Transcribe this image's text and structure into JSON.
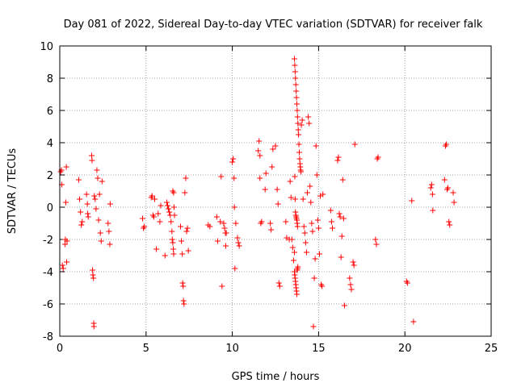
{
  "chart_data": {
    "type": "scatter",
    "title": "Day 081 of 2022, Sidereal Day-to-day VTEC variation (SDTVAR) for receiver falk",
    "xlabel": "GPS time / hours",
    "ylabel": "SDTVAR / TECUs",
    "xlim": [
      0,
      25
    ],
    "ylim": [
      -8,
      10
    ],
    "xticks": [
      0,
      5,
      10,
      15,
      20,
      25
    ],
    "yticks": [
      -8,
      -6,
      -4,
      -2,
      0,
      2,
      4,
      6,
      8,
      10
    ],
    "grid": true,
    "marker": "+",
    "color": "#ff0000",
    "series": [
      {
        "name": "SDTVAR",
        "points": [
          [
            0.05,
            2.2
          ],
          [
            0.1,
            2.3
          ],
          [
            0.12,
            1.4
          ],
          [
            0.15,
            -3.6
          ],
          [
            0.2,
            -3.8
          ],
          [
            0.3,
            -2.3
          ],
          [
            0.32,
            -2.0
          ],
          [
            0.35,
            0.3
          ],
          [
            0.38,
            2.5
          ],
          [
            0.4,
            -3.4
          ],
          [
            0.42,
            -2.1
          ],
          [
            1.1,
            1.7
          ],
          [
            1.15,
            0.5
          ],
          [
            1.2,
            -0.3
          ],
          [
            1.25,
            -1.1
          ],
          [
            1.3,
            -0.9
          ],
          [
            1.55,
            0.8
          ],
          [
            1.6,
            0.2
          ],
          [
            1.62,
            -0.4
          ],
          [
            1.65,
            -0.6
          ],
          [
            1.85,
            3.2
          ],
          [
            1.87,
            2.9
          ],
          [
            1.9,
            -3.9
          ],
          [
            1.92,
            -4.2
          ],
          [
            1.95,
            -4.4
          ],
          [
            1.97,
            -7.2
          ],
          [
            1.98,
            -7.4
          ],
          [
            2.0,
            0.7
          ],
          [
            2.05,
            0.5
          ],
          [
            2.1,
            -0.1
          ],
          [
            2.15,
            2.3
          ],
          [
            2.2,
            1.8
          ],
          [
            2.25,
            -0.8
          ],
          [
            2.3,
            0.8
          ],
          [
            2.35,
            -1.6
          ],
          [
            2.4,
            -2.1
          ],
          [
            2.45,
            1.6
          ],
          [
            2.8,
            -1.0
          ],
          [
            2.85,
            -1.5
          ],
          [
            2.9,
            -2.3
          ],
          [
            2.92,
            0.2
          ],
          [
            4.8,
            -0.7
          ],
          [
            4.85,
            -1.3
          ],
          [
            4.9,
            -1.2
          ],
          [
            5.3,
            0.6
          ],
          [
            5.35,
            0.7
          ],
          [
            5.4,
            -0.5
          ],
          [
            5.45,
            -0.6
          ],
          [
            5.5,
            0.5
          ],
          [
            5.6,
            -2.6
          ],
          [
            5.7,
            -0.4
          ],
          [
            5.8,
            -0.9
          ],
          [
            5.85,
            0.1
          ],
          [
            6.1,
            -3.0
          ],
          [
            6.2,
            0.3
          ],
          [
            6.25,
            0.1
          ],
          [
            6.3,
            -0.1
          ],
          [
            6.35,
            -0.3
          ],
          [
            6.4,
            -0.5
          ],
          [
            6.45,
            -0.9
          ],
          [
            6.5,
            -1.5
          ],
          [
            6.52,
            -2.0
          ],
          [
            6.55,
            -2.2
          ],
          [
            6.58,
            -2.6
          ],
          [
            6.6,
            -2.9
          ],
          [
            6.55,
            1.0
          ],
          [
            6.6,
            0.9
          ],
          [
            6.62,
            0.0
          ],
          [
            6.65,
            -0.5
          ],
          [
            7.0,
            -1.2
          ],
          [
            7.05,
            -2.1
          ],
          [
            7.1,
            -2.9
          ],
          [
            7.12,
            -4.7
          ],
          [
            7.15,
            -4.9
          ],
          [
            7.17,
            -5.8
          ],
          [
            7.2,
            -6.0
          ],
          [
            7.25,
            0.9
          ],
          [
            7.3,
            1.8
          ],
          [
            7.35,
            -1.5
          ],
          [
            7.4,
            -1.3
          ],
          [
            7.45,
            -2.7
          ],
          [
            8.6,
            -1.1
          ],
          [
            8.7,
            -1.2
          ],
          [
            9.1,
            -0.6
          ],
          [
            9.15,
            -2.1
          ],
          [
            9.3,
            -0.9
          ],
          [
            9.35,
            1.9
          ],
          [
            9.4,
            -4.9
          ],
          [
            9.5,
            -1.0
          ],
          [
            9.55,
            -1.3
          ],
          [
            9.6,
            -1.6
          ],
          [
            9.62,
            -2.4
          ],
          [
            9.65,
            -1.6
          ],
          [
            10.0,
            2.8
          ],
          [
            10.05,
            3.0
          ],
          [
            10.1,
            1.8
          ],
          [
            10.12,
            0.0
          ],
          [
            10.15,
            -3.8
          ],
          [
            10.2,
            -1.0
          ],
          [
            10.3,
            -1.9
          ],
          [
            10.35,
            -2.2
          ],
          [
            10.4,
            -2.4
          ],
          [
            11.5,
            3.5
          ],
          [
            11.55,
            4.1
          ],
          [
            11.6,
            3.2
          ],
          [
            11.6,
            1.8
          ],
          [
            11.65,
            -1.0
          ],
          [
            11.7,
            -0.9
          ],
          [
            11.9,
            1.1
          ],
          [
            11.95,
            2.1
          ],
          [
            12.2,
            -1.0
          ],
          [
            12.25,
            -1.4
          ],
          [
            12.3,
            2.5
          ],
          [
            12.35,
            3.6
          ],
          [
            12.5,
            3.8
          ],
          [
            12.6,
            1.1
          ],
          [
            12.65,
            0.2
          ],
          [
            12.7,
            -4.7
          ],
          [
            12.75,
            -4.9
          ],
          [
            13.1,
            -0.9
          ],
          [
            13.15,
            -1.9
          ],
          [
            13.3,
            -2.0
          ],
          [
            13.35,
            1.6
          ],
          [
            13.4,
            0.6
          ],
          [
            13.45,
            -2.0
          ],
          [
            13.5,
            -2.5
          ],
          [
            13.55,
            -3.3
          ],
          [
            13.6,
            -2.8
          ],
          [
            13.6,
            9.2
          ],
          [
            13.62,
            8.8
          ],
          [
            13.64,
            8.4
          ],
          [
            13.66,
            8.0
          ],
          [
            13.68,
            7.6
          ],
          [
            13.7,
            7.2
          ],
          [
            13.72,
            6.8
          ],
          [
            13.74,
            6.4
          ],
          [
            13.76,
            6.0
          ],
          [
            13.78,
            5.6
          ],
          [
            13.8,
            5.2
          ],
          [
            13.82,
            4.8
          ],
          [
            13.84,
            4.5
          ],
          [
            13.86,
            3.9
          ],
          [
            13.88,
            3.4
          ],
          [
            13.9,
            3.0
          ],
          [
            13.92,
            2.7
          ],
          [
            13.94,
            2.5
          ],
          [
            13.96,
            2.3
          ],
          [
            13.98,
            2.2
          ],
          [
            13.62,
            1.9
          ],
          [
            13.64,
            0.5
          ],
          [
            13.66,
            -0.3
          ],
          [
            13.68,
            -0.5
          ],
          [
            13.7,
            -0.6
          ],
          [
            13.72,
            -0.7
          ],
          [
            13.74,
            -0.8
          ],
          [
            13.76,
            -1.0
          ],
          [
            13.78,
            -1.2
          ],
          [
            13.6,
            -4.0
          ],
          [
            13.62,
            -4.2
          ],
          [
            13.64,
            -4.4
          ],
          [
            13.66,
            -4.6
          ],
          [
            13.68,
            -4.8
          ],
          [
            13.7,
            -5.0
          ],
          [
            13.72,
            -5.2
          ],
          [
            13.74,
            -5.4
          ],
          [
            13.76,
            -3.9
          ],
          [
            13.78,
            -3.8
          ],
          [
            13.8,
            -3.7
          ],
          [
            14.0,
            5.1
          ],
          [
            14.05,
            5.4
          ],
          [
            14.1,
            0.5
          ],
          [
            14.15,
            -1.2
          ],
          [
            14.2,
            -1.6
          ],
          [
            14.25,
            -2.2
          ],
          [
            14.3,
            -2.8
          ],
          [
            14.35,
            0.9
          ],
          [
            14.4,
            5.6
          ],
          [
            14.45,
            5.2
          ],
          [
            14.5,
            1.3
          ],
          [
            14.55,
            0.3
          ],
          [
            14.6,
            -1.0
          ],
          [
            14.65,
            -1.5
          ],
          [
            14.7,
            -7.4
          ],
          [
            14.75,
            -4.4
          ],
          [
            14.8,
            -3.2
          ],
          [
            14.85,
            3.8
          ],
          [
            14.9,
            2.0
          ],
          [
            14.95,
            -0.8
          ],
          [
            15.0,
            -1.3
          ],
          [
            15.05,
            -2.9
          ],
          [
            15.1,
            0.7
          ],
          [
            15.15,
            -4.8
          ],
          [
            15.2,
            -4.9
          ],
          [
            15.25,
            0.8
          ],
          [
            15.7,
            -0.2
          ],
          [
            15.75,
            -0.9
          ],
          [
            15.8,
            -1.3
          ],
          [
            16.1,
            2.9
          ],
          [
            16.15,
            3.1
          ],
          [
            16.2,
            -0.4
          ],
          [
            16.25,
            -0.6
          ],
          [
            16.3,
            -3.1
          ],
          [
            16.35,
            -1.8
          ],
          [
            16.4,
            1.7
          ],
          [
            16.45,
            -0.7
          ],
          [
            16.5,
            -6.1
          ],
          [
            16.8,
            -4.4
          ],
          [
            16.85,
            -4.8
          ],
          [
            16.9,
            -5.1
          ],
          [
            17.0,
            -3.4
          ],
          [
            17.05,
            -3.6
          ],
          [
            17.1,
            3.9
          ],
          [
            18.3,
            -2.0
          ],
          [
            18.35,
            -2.3
          ],
          [
            18.4,
            3.0
          ],
          [
            18.45,
            3.1
          ],
          [
            20.1,
            -4.6
          ],
          [
            20.15,
            -4.7
          ],
          [
            20.4,
            0.4
          ],
          [
            20.5,
            -7.1
          ],
          [
            21.5,
            1.2
          ],
          [
            21.55,
            1.4
          ],
          [
            21.6,
            0.8
          ],
          [
            21.62,
            -0.2
          ],
          [
            22.3,
            1.7
          ],
          [
            22.35,
            3.8
          ],
          [
            22.4,
            3.9
          ],
          [
            22.45,
            1.1
          ],
          [
            22.5,
            1.2
          ],
          [
            22.55,
            -0.9
          ],
          [
            22.6,
            -1.1
          ],
          [
            22.8,
            0.9
          ],
          [
            22.85,
            0.3
          ]
        ]
      }
    ]
  }
}
